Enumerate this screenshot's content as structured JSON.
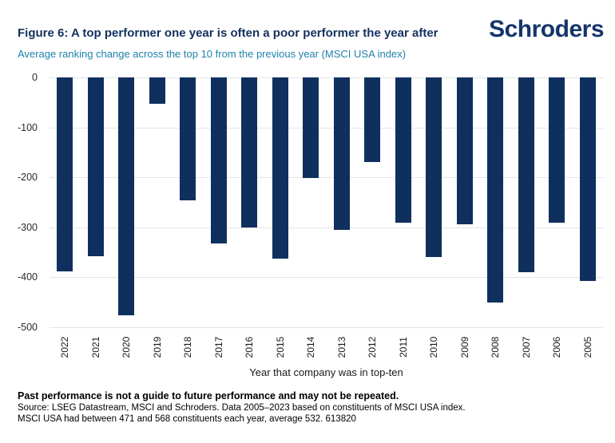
{
  "header": {
    "title": "Figure 6: A top performer one year is often a poor performer the year after",
    "subtitle": "Average ranking change across the top 10 from the previous year (MSCI USA index)",
    "logo_text": "Schroders"
  },
  "chart_data": {
    "type": "bar",
    "title": "Figure 6: A top performer one year is often a poor performer the year after",
    "subtitle": "Average ranking change across the top 10 from the previous year (MSCI USA index)",
    "categories": [
      "2022",
      "2021",
      "2020",
      "2019",
      "2018",
      "2017",
      "2016",
      "2015",
      "2014",
      "2013",
      "2012",
      "2011",
      "2010",
      "2009",
      "2008",
      "2007",
      "2006",
      "2005"
    ],
    "values": [
      -388,
      -358,
      -476,
      -52,
      -246,
      -333,
      -300,
      -362,
      -202,
      -305,
      -170,
      -290,
      -359,
      -294,
      -451,
      -390,
      -290,
      -408
    ],
    "xlabel": "Year that company was in top-ten",
    "ylabel": "",
    "ylim": [
      -500,
      0
    ],
    "yticks": [
      0,
      -100,
      -200,
      -300,
      -400,
      -500
    ],
    "grid": "horizontal",
    "legend": "none",
    "bar_color": "#0f305e"
  },
  "footer": {
    "bold_line": "Past performance is not a guide to future performance and may not be repeated.",
    "source_line": "Source: LSEG Datastream, MSCI and Schroders. Data 2005–2023 based on constituents of MSCI USA index.",
    "note_line": "MSCI USA had between 471 and 568 constituents each year, average 532. 613820"
  },
  "colors": {
    "bar_navy": "#0f305e",
    "title_navy": "#14315e",
    "logo_navy": "#14356b",
    "subtitle_teal": "#1e82aa",
    "grid_gray": "#e4e4e4",
    "tick_text": "#2b2b2b"
  }
}
